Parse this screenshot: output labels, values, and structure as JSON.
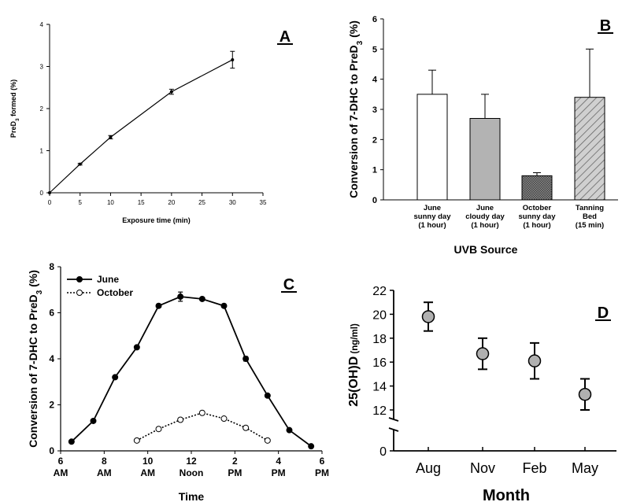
{
  "chart_data": [
    {
      "panel": "A",
      "type": "line",
      "xlabel": "Exposure time (min)",
      "ylabel": "PreD",
      "ylabel_sub": "3",
      "ylabel_suffix": " formed (%)",
      "xlim": [
        0,
        35
      ],
      "ylim": [
        0,
        4
      ],
      "xticks": [
        0,
        5,
        10,
        15,
        20,
        25,
        30,
        35
      ],
      "yticks": [
        0,
        1,
        2,
        3,
        4
      ],
      "series": [
        {
          "x": [
            0,
            5,
            10,
            20,
            30
          ],
          "y": [
            0,
            0.68,
            1.32,
            2.4,
            3.16
          ],
          "err": [
            0,
            0.02,
            0.04,
            0.06,
            0.2
          ]
        }
      ]
    },
    {
      "panel": "B",
      "type": "bar",
      "ylabel": "Conversion of 7-DHC to PreD",
      "ylabel_sub": "3",
      "ylabel_suffix": " (%)",
      "xlabel": "UVB Source",
      "ylim": [
        0,
        6
      ],
      "yticks": [
        0,
        1,
        2,
        3,
        4,
        5,
        6
      ],
      "categories": [
        [
          "June",
          "sunny day",
          "(1 hour)"
        ],
        [
          "June",
          "cloudy day",
          "(1 hour)"
        ],
        [
          "October",
          "sunny day",
          "(1 hour)"
        ],
        [
          "Tanning",
          "Bed",
          "(15 min)"
        ]
      ],
      "values": [
        3.5,
        2.7,
        0.8,
        3.4
      ],
      "err": [
        0.8,
        0.8,
        0.1,
        1.6
      ],
      "fills": [
        "white",
        "#b3b3b3",
        "crosshatch",
        "diagonal"
      ]
    },
    {
      "panel": "C",
      "type": "line",
      "ylabel": "Conversion of 7-DHC to PreD",
      "ylabel_sub": "3",
      "ylabel_suffix": " (%)",
      "xlabel": "Time",
      "xlim": [
        6,
        18
      ],
      "ylim": [
        0,
        8
      ],
      "yticks": [
        0,
        2,
        4,
        6,
        8
      ],
      "xticks": [
        {
          "x": 6,
          "l1": "6",
          "l2": "AM"
        },
        {
          "x": 8,
          "l1": "8",
          "l2": "AM"
        },
        {
          "x": 10,
          "l1": "10",
          "l2": "AM"
        },
        {
          "x": 12,
          "l1": "12",
          "l2": "Noon"
        },
        {
          "x": 14,
          "l1": "2",
          "l2": "PM"
        },
        {
          "x": 16,
          "l1": "4",
          "l2": "PM"
        },
        {
          "x": 18,
          "l1": "6",
          "l2": "PM"
        }
      ],
      "legend": "top-left",
      "series": [
        {
          "name": "June",
          "style": "solid-filled",
          "x": [
            6.5,
            7.5,
            8.5,
            9.5,
            10.5,
            11.5,
            12.5,
            13.5,
            14.5,
            15.5,
            16.5,
            17.5
          ],
          "y": [
            0.4,
            1.3,
            3.2,
            4.5,
            6.3,
            6.7,
            6.6,
            6.3,
            4.0,
            2.4,
            0.9,
            0.2
          ],
          "err": [
            0,
            0,
            0,
            0,
            0,
            0.2,
            0,
            0,
            0.1,
            0,
            0,
            0
          ]
        },
        {
          "name": "October",
          "style": "dotted-open",
          "x": [
            9.5,
            10.5,
            11.5,
            12.5,
            13.5,
            14.5,
            15.5
          ],
          "y": [
            0.45,
            0.95,
            1.35,
            1.65,
            1.4,
            1.0,
            0.45
          ],
          "err": [
            0,
            0,
            0,
            0,
            0,
            0,
            0
          ]
        }
      ]
    },
    {
      "panel": "D",
      "type": "scatter",
      "ylabel": "25(OH)D",
      "ylabel_unit": " (ng/ml)",
      "xlabel": "Month",
      "categories": [
        "Aug",
        "Nov",
        "Feb",
        "May"
      ],
      "ylim": [
        12,
        22
      ],
      "yticks": [
        12,
        14,
        16,
        18,
        20,
        22
      ],
      "ybreak_tick": "0",
      "values": [
        19.8,
        16.7,
        16.1,
        13.3
      ],
      "err": [
        1.2,
        1.3,
        1.5,
        1.3
      ]
    }
  ]
}
